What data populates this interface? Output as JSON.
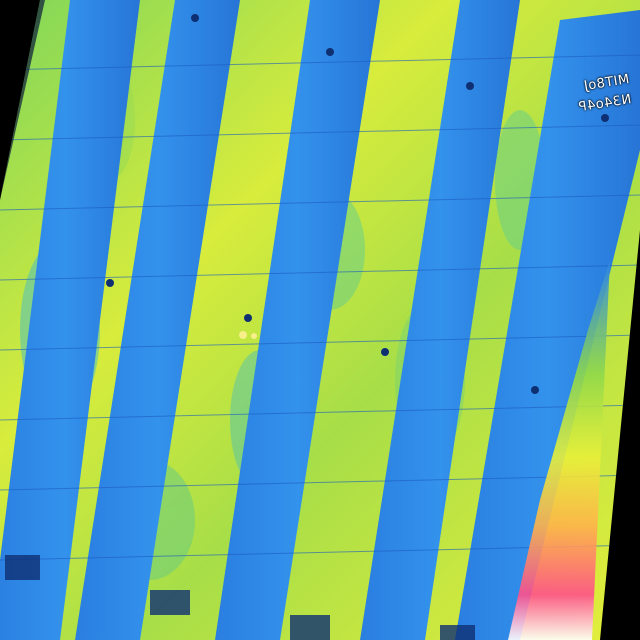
{
  "image": {
    "kind": "thermal aerial image of solar panel rows over grass",
    "overlay_text": [
      "MIT8oJ",
      "N34o4P"
    ]
  },
  "palette": {
    "background": "#000000",
    "panel": "#2f86e6",
    "panel_dark": "#1e5fbf",
    "grass_cool": "#3fb8c8",
    "grass_mid": "#8fd84a",
    "grass_warm": "#e8f03a",
    "hotspot": "#f6ef8a",
    "scale_low": "#2f86e6",
    "scale_high": "#ff2f6f"
  },
  "icons": {
    "scale": "thermal-color-scale-icon"
  }
}
